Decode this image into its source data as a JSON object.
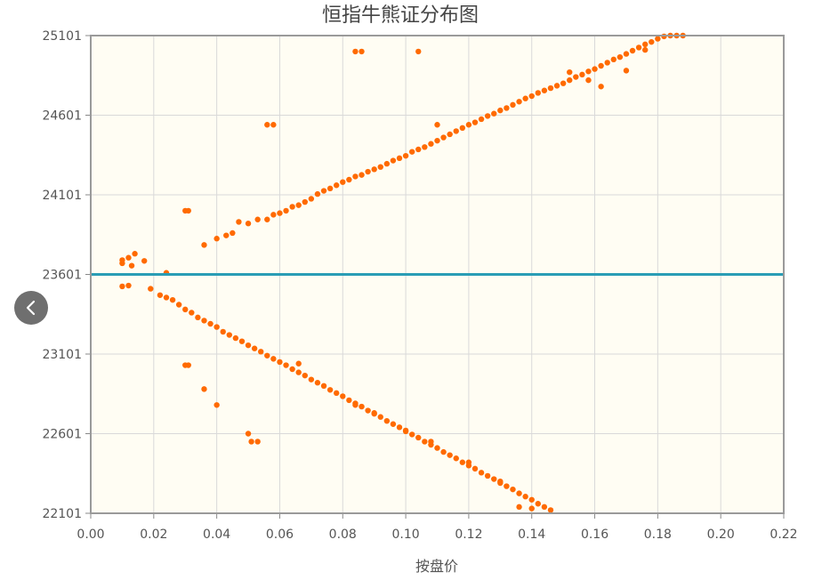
{
  "chart_data": {
    "type": "scatter",
    "title": "恒指牛熊证分布图",
    "xlabel": "按盘价",
    "ylabel": "",
    "xlim": [
      0,
      0.22
    ],
    "ylim": [
      22101,
      25101
    ],
    "x_ticks": [
      "0.00",
      "0.02",
      "0.04",
      "0.06",
      "0.08",
      "0.10",
      "0.12",
      "0.14",
      "0.16",
      "0.18",
      "0.20",
      "0.22"
    ],
    "y_ticks": [
      "22101",
      "22601",
      "23101",
      "23601",
      "24101",
      "24601",
      "25101"
    ],
    "grid": true,
    "reference_line": {
      "y": 23601,
      "color": "#2a9db5"
    },
    "series": [
      {
        "color": "#ff6a00",
        "points": [
          [
            0.01,
            23691
          ],
          [
            0.01,
            23671
          ],
          [
            0.012,
            23706
          ],
          [
            0.013,
            23656
          ],
          [
            0.014,
            23731
          ],
          [
            0.017,
            23686
          ],
          [
            0.024,
            23611
          ],
          [
            0.03,
            24001
          ],
          [
            0.031,
            24001
          ],
          [
            0.036,
            23786
          ],
          [
            0.04,
            23826
          ],
          [
            0.043,
            23846
          ],
          [
            0.045,
            23861
          ],
          [
            0.047,
            23931
          ],
          [
            0.05,
            23921
          ],
          [
            0.053,
            23946
          ],
          [
            0.056,
            23946
          ],
          [
            0.058,
            23976
          ],
          [
            0.06,
            23986
          ],
          [
            0.062,
            24001
          ],
          [
            0.064,
            24026
          ],
          [
            0.066,
            24036
          ],
          [
            0.068,
            24056
          ],
          [
            0.07,
            24076
          ],
          [
            0.072,
            24106
          ],
          [
            0.074,
            24126
          ],
          [
            0.076,
            24141
          ],
          [
            0.078,
            24161
          ],
          [
            0.08,
            24181
          ],
          [
            0.082,
            24196
          ],
          [
            0.084,
            24216
          ],
          [
            0.086,
            24226
          ],
          [
            0.088,
            24246
          ],
          [
            0.09,
            24261
          ],
          [
            0.092,
            24276
          ],
          [
            0.094,
            24296
          ],
          [
            0.096,
            24316
          ],
          [
            0.098,
            24331
          ],
          [
            0.1,
            24346
          ],
          [
            0.102,
            24371
          ],
          [
            0.104,
            24386
          ],
          [
            0.106,
            24401
          ],
          [
            0.108,
            24421
          ],
          [
            0.11,
            24441
          ],
          [
            0.112,
            24461
          ],
          [
            0.114,
            24481
          ],
          [
            0.116,
            24501
          ],
          [
            0.118,
            24521
          ],
          [
            0.12,
            24541
          ],
          [
            0.122,
            24556
          ],
          [
            0.124,
            24576
          ],
          [
            0.126,
            24596
          ],
          [
            0.128,
            24611
          ],
          [
            0.13,
            24631
          ],
          [
            0.132,
            24646
          ],
          [
            0.134,
            24666
          ],
          [
            0.136,
            24686
          ],
          [
            0.138,
            24706
          ],
          [
            0.14,
            24721
          ],
          [
            0.142,
            24741
          ],
          [
            0.144,
            24756
          ],
          [
            0.146,
            24771
          ],
          [
            0.148,
            24786
          ],
          [
            0.15,
            24801
          ],
          [
            0.152,
            24821
          ],
          [
            0.154,
            24841
          ],
          [
            0.156,
            24856
          ],
          [
            0.158,
            24876
          ],
          [
            0.16,
            24891
          ],
          [
            0.162,
            24911
          ],
          [
            0.164,
            24931
          ],
          [
            0.166,
            24951
          ],
          [
            0.168,
            24966
          ],
          [
            0.17,
            24986
          ],
          [
            0.172,
            25006
          ],
          [
            0.174,
            25026
          ],
          [
            0.176,
            25046
          ],
          [
            0.178,
            25061
          ],
          [
            0.18,
            25081
          ],
          [
            0.182,
            25096
          ],
          [
            0.184,
            25101
          ],
          [
            0.186,
            25101
          ],
          [
            0.056,
            24541
          ],
          [
            0.058,
            24541
          ],
          [
            0.084,
            25001
          ],
          [
            0.086,
            25001
          ],
          [
            0.104,
            25001
          ],
          [
            0.11,
            24541
          ],
          [
            0.152,
            24871
          ],
          [
            0.158,
            24821
          ],
          [
            0.162,
            24781
          ],
          [
            0.17,
            24881
          ],
          [
            0.176,
            25011
          ],
          [
            0.188,
            25101
          ],
          [
            0.01,
            23526
          ],
          [
            0.012,
            23531
          ],
          [
            0.019,
            23511
          ],
          [
            0.022,
            23471
          ],
          [
            0.024,
            23456
          ],
          [
            0.026,
            23441
          ],
          [
            0.028,
            23411
          ],
          [
            0.03,
            23381
          ],
          [
            0.032,
            23361
          ],
          [
            0.034,
            23331
          ],
          [
            0.036,
            23311
          ],
          [
            0.038,
            23291
          ],
          [
            0.04,
            23271
          ],
          [
            0.042,
            23241
          ],
          [
            0.044,
            23221
          ],
          [
            0.046,
            23201
          ],
          [
            0.048,
            23181
          ],
          [
            0.05,
            23156
          ],
          [
            0.052,
            23136
          ],
          [
            0.054,
            23116
          ],
          [
            0.056,
            23091
          ],
          [
            0.058,
            23071
          ],
          [
            0.06,
            23051
          ],
          [
            0.062,
            23031
          ],
          [
            0.064,
            23006
          ],
          [
            0.066,
            22986
          ],
          [
            0.068,
            22966
          ],
          [
            0.07,
            22941
          ],
          [
            0.072,
            22921
          ],
          [
            0.074,
            22901
          ],
          [
            0.076,
            22876
          ],
          [
            0.078,
            22856
          ],
          [
            0.08,
            22836
          ],
          [
            0.082,
            22811
          ],
          [
            0.084,
            22791
          ],
          [
            0.086,
            22771
          ],
          [
            0.088,
            22746
          ],
          [
            0.09,
            22726
          ],
          [
            0.092,
            22706
          ],
          [
            0.094,
            22681
          ],
          [
            0.096,
            22661
          ],
          [
            0.098,
            22641
          ],
          [
            0.1,
            22616
          ],
          [
            0.102,
            22596
          ],
          [
            0.104,
            22576
          ],
          [
            0.106,
            22551
          ],
          [
            0.108,
            22531
          ],
          [
            0.11,
            22511
          ],
          [
            0.112,
            22486
          ],
          [
            0.114,
            22466
          ],
          [
            0.116,
            22446
          ],
          [
            0.118,
            22421
          ],
          [
            0.12,
            22401
          ],
          [
            0.122,
            22381
          ],
          [
            0.124,
            22356
          ],
          [
            0.126,
            22336
          ],
          [
            0.128,
            22316
          ],
          [
            0.13,
            22291
          ],
          [
            0.132,
            22271
          ],
          [
            0.134,
            22251
          ],
          [
            0.136,
            22226
          ],
          [
            0.138,
            22206
          ],
          [
            0.14,
            22186
          ],
          [
            0.142,
            22161
          ],
          [
            0.144,
            22141
          ],
          [
            0.146,
            22121
          ],
          [
            0.03,
            23031
          ],
          [
            0.031,
            23031
          ],
          [
            0.036,
            22881
          ],
          [
            0.04,
            22781
          ],
          [
            0.05,
            22601
          ],
          [
            0.051,
            22551
          ],
          [
            0.053,
            22551
          ],
          [
            0.066,
            23041
          ],
          [
            0.084,
            22781
          ],
          [
            0.09,
            22731
          ],
          [
            0.1,
            22621
          ],
          [
            0.108,
            22551
          ],
          [
            0.12,
            22421
          ],
          [
            0.13,
            22301
          ],
          [
            0.136,
            22141
          ],
          [
            0.14,
            22131
          ]
        ]
      }
    ]
  }
}
